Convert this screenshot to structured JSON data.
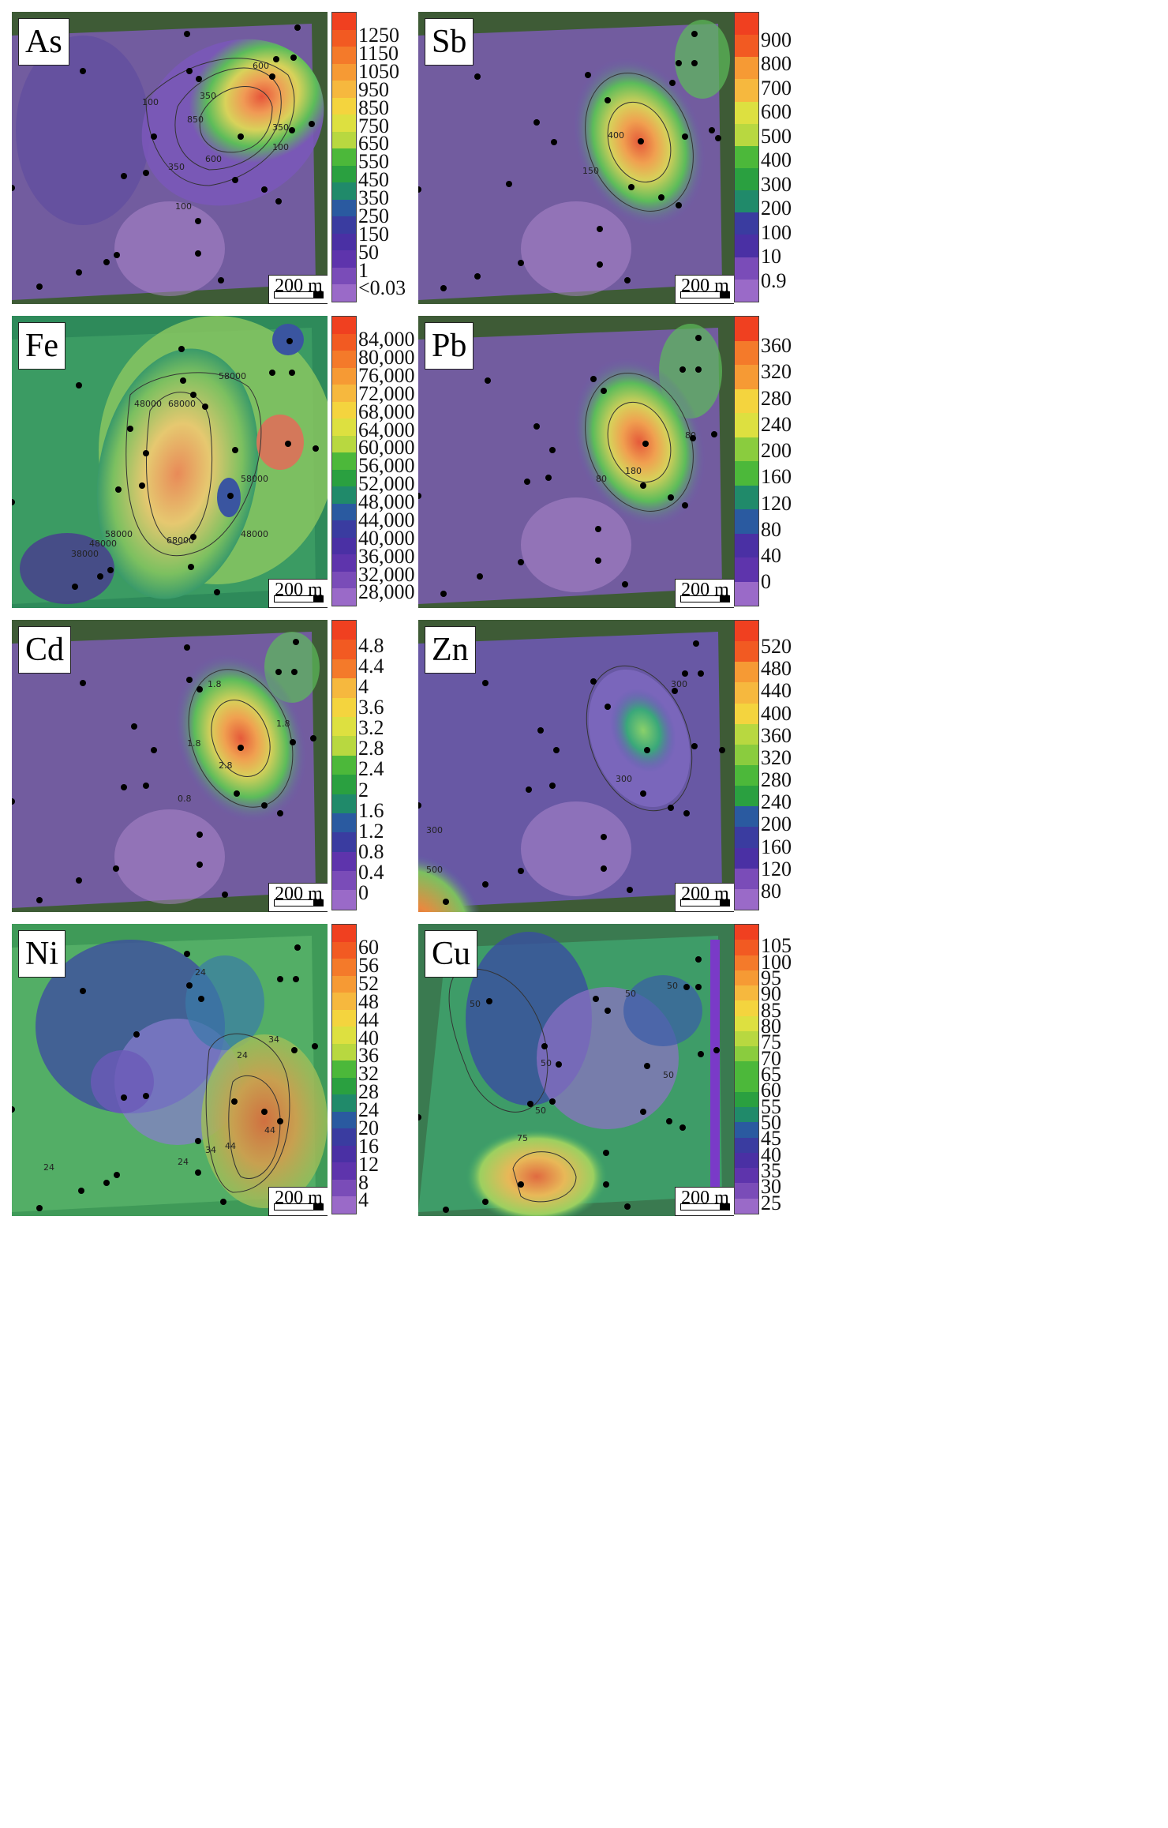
{
  "scale_bar_label": "200 m",
  "panels": [
    {
      "id": "As",
      "label": "As",
      "legend": [
        "1250",
        "1150",
        "1050",
        "950",
        "850",
        "750",
        "650",
        "550",
        "450",
        "350",
        "250",
        "150",
        "50",
        "1",
        "<0.03"
      ],
      "contours": [
        "600",
        "350",
        "850",
        "100",
        "350",
        "100",
        "600",
        "350",
        "100"
      ]
    },
    {
      "id": "Sb",
      "label": "Sb",
      "legend": [
        "900",
        "800",
        "700",
        "600",
        "500",
        "400",
        "300",
        "200",
        "100",
        "10",
        "0.9"
      ],
      "contours": [
        "400",
        "150"
      ]
    },
    {
      "id": "Fe",
      "label": "Fe",
      "legend": [
        "84,000",
        "80,000",
        "76,000",
        "72,000",
        "68,000",
        "64,000",
        "60,000",
        "56,000",
        "52,000",
        "48,000",
        "44,000",
        "40,000",
        "36,000",
        "32,000",
        "28,000"
      ],
      "contours": [
        "58000",
        "48000",
        "68000",
        "58000",
        "68000",
        "48000",
        "58000",
        "48000",
        "38000"
      ]
    },
    {
      "id": "Pb",
      "label": "Pb",
      "legend": [
        "360",
        "320",
        "280",
        "240",
        "200",
        "160",
        "120",
        "80",
        "40",
        "0"
      ],
      "contours": [
        "180",
        "80",
        "80"
      ]
    },
    {
      "id": "Cd",
      "label": "Cd",
      "legend": [
        "4.8",
        "4.4",
        "4",
        "3.6",
        "3.2",
        "2.8",
        "2.4",
        "2",
        "1.6",
        "1.2",
        "0.8",
        "0.4",
        "0"
      ],
      "contours": [
        "1.8",
        "2.8",
        "1.8",
        "0.8",
        "1.8"
      ]
    },
    {
      "id": "Zn",
      "label": "Zn",
      "legend": [
        "520",
        "480",
        "440",
        "400",
        "360",
        "320",
        "280",
        "240",
        "200",
        "160",
        "120",
        "80"
      ],
      "contours": [
        "300",
        "300",
        "300",
        "500"
      ]
    },
    {
      "id": "Ni",
      "label": "Ni",
      "legend": [
        "60",
        "56",
        "52",
        "48",
        "44",
        "40",
        "36",
        "32",
        "28",
        "24",
        "20",
        "16",
        "12",
        "8",
        "4"
      ],
      "contours": [
        "24",
        "34",
        "24",
        "34",
        "44",
        "44",
        "24",
        "24"
      ]
    },
    {
      "id": "Cu",
      "label": "Cu",
      "legend": [
        "105",
        "100",
        "95",
        "90",
        "85",
        "80",
        "75",
        "70",
        "65",
        "60",
        "55",
        "50",
        "45",
        "40",
        "35",
        "30",
        "25"
      ],
      "contours": [
        "50",
        "50",
        "50",
        "50",
        "50",
        "50",
        "75"
      ]
    }
  ]
}
